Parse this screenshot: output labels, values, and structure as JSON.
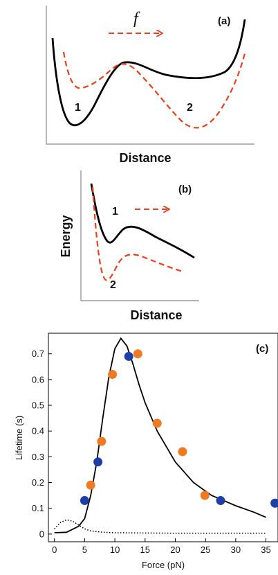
{
  "colors": {
    "solid": "#000000",
    "dashed": "#e8401c",
    "blue": "#1f3fa8",
    "orange": "#f07a22"
  },
  "panel_a": {
    "label": "(a)",
    "force_symbol": "f",
    "well1": "1",
    "well2": "2",
    "xlabel": "Distance"
  },
  "panel_b": {
    "label": "(b)",
    "ylabel": "Energy",
    "well1": "1",
    "well2": "2",
    "xlabel": "Distance"
  },
  "chart_data": {
    "type": "scatter",
    "label": "(c)",
    "xlabel": "Force (pN)",
    "ylabel": "Lifetime (s)",
    "xlim": [
      -1,
      37
    ],
    "ylim": [
      -0.03,
      0.78
    ],
    "x_ticks": [
      0,
      5,
      10,
      15,
      20,
      25,
      30,
      35
    ],
    "y_ticks": [
      0,
      0.1,
      0.2,
      0.3,
      0.4,
      0.5,
      0.6,
      0.7
    ],
    "series": [
      {
        "marker": "blue",
        "points": [
          [
            5.0,
            0.13
          ],
          [
            7.2,
            0.28
          ],
          [
            12.3,
            0.69
          ],
          [
            27.5,
            0.13
          ],
          [
            36.5,
            0.12
          ]
        ]
      },
      {
        "marker": "orange",
        "points": [
          [
            6.0,
            0.19
          ],
          [
            7.8,
            0.36
          ],
          [
            9.6,
            0.62
          ],
          [
            13.8,
            0.7
          ],
          [
            17.0,
            0.43
          ],
          [
            21.2,
            0.32
          ],
          [
            24.9,
            0.15
          ]
        ]
      },
      {
        "style": "solid-curve",
        "points": [
          [
            0,
            0.005
          ],
          [
            2,
            0.007
          ],
          [
            4,
            0.03
          ],
          [
            5,
            0.06
          ],
          [
            6,
            0.15
          ],
          [
            7,
            0.28
          ],
          [
            8,
            0.45
          ],
          [
            9,
            0.61
          ],
          [
            10,
            0.72
          ],
          [
            11,
            0.76
          ],
          [
            12,
            0.73
          ],
          [
            13,
            0.66
          ],
          [
            14,
            0.58
          ],
          [
            15,
            0.51
          ],
          [
            17,
            0.4
          ],
          [
            20,
            0.28
          ],
          [
            23,
            0.2
          ],
          [
            26,
            0.15
          ],
          [
            30,
            0.11
          ],
          [
            33,
            0.085
          ],
          [
            35,
            0.065
          ]
        ]
      },
      {
        "style": "dotted-curve",
        "points": [
          [
            0,
            0.02
          ],
          [
            1,
            0.045
          ],
          [
            2,
            0.055
          ],
          [
            3,
            0.05
          ],
          [
            4,
            0.035
          ],
          [
            5,
            0.02
          ],
          [
            6,
            0.012
          ],
          [
            8,
            0.007
          ],
          [
            10,
            0.005
          ],
          [
            15,
            0.004
          ],
          [
            20,
            0.003
          ],
          [
            30,
            0.003
          ],
          [
            35,
            0.003
          ]
        ]
      }
    ]
  }
}
